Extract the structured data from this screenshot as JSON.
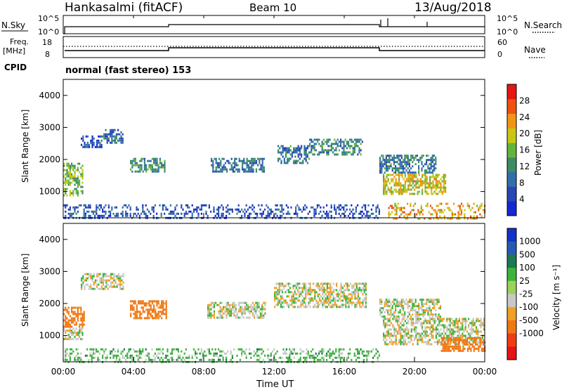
{
  "header": {
    "station": "Hankasalmi (fitACF)",
    "beam": "Beam 10",
    "date": "13/Aug/2018",
    "program": "normal (fast stereo) 153"
  },
  "panels": {
    "nsky": {
      "left_label": "N.Sky",
      "right_label": "N.Search",
      "left_ticks": [
        "10^5",
        "10^0"
      ],
      "right_ticks": [
        "10^5",
        "10^0"
      ]
    },
    "freq": {
      "left_label_1": "Freq.",
      "left_label_2": "[MHz]",
      "right_label": "Nave",
      "left_ticks": [
        "18",
        "8"
      ],
      "right_ticks": [
        "60",
        "0"
      ]
    },
    "cpid_label": "CPID"
  },
  "colors": {
    "power_scale": [
      "#1428d2",
      "#2846b4",
      "#326eaa",
      "#3c8c64",
      "#64b43c",
      "#c8c814",
      "#f09614",
      "#f05014",
      "#e61414"
    ],
    "velocity_scale": [
      "#1432c8",
      "#285ab4",
      "#1e7850",
      "#3cb43c",
      "#9bd25a",
      "#c8c8c8",
      "#f0a028",
      "#f07814",
      "#f03c14",
      "#e61414"
    ]
  },
  "chart_data": [
    {
      "type": "heatmap",
      "name_label": "Power",
      "ylabel": "Slant Range [km]",
      "xlabel": "",
      "colorbar_label": "Power [dB]",
      "yticks": [
        "1000",
        "2000",
        "3000",
        "4000"
      ],
      "ylim": [
        180,
        4500
      ],
      "colorbar_ticks": [
        "4",
        "8",
        "12",
        "16",
        "20",
        "24",
        "28"
      ],
      "colorbar_range": [
        0,
        32
      ],
      "echo_regions": [
        {
          "t0": 0.0,
          "t1": 1.1,
          "r0": 900,
          "r1": 1900,
          "power": 16
        },
        {
          "t0": 1.0,
          "t1": 2.2,
          "r0": 2400,
          "r1": 2750,
          "power": 6
        },
        {
          "t0": 2.2,
          "t1": 3.4,
          "r0": 2550,
          "r1": 2950,
          "power": 8
        },
        {
          "t0": 3.8,
          "t1": 5.8,
          "r0": 1600,
          "r1": 2050,
          "power": 12
        },
        {
          "t0": 8.4,
          "t1": 11.4,
          "r0": 1600,
          "r1": 2050,
          "power": 9
        },
        {
          "t0": 12.2,
          "t1": 14.0,
          "r0": 1900,
          "r1": 2450,
          "power": 10
        },
        {
          "t0": 14.0,
          "t1": 17.0,
          "r0": 2150,
          "r1": 2650,
          "power": 11
        },
        {
          "t0": 18.0,
          "t1": 21.2,
          "r0": 1600,
          "r1": 2150,
          "power": 10
        },
        {
          "t0": 18.2,
          "t1": 21.8,
          "r0": 950,
          "r1": 1550,
          "power": 20
        },
        {
          "t0": 18.5,
          "t1": 24.0,
          "r0": 180,
          "r1": 650,
          "power": 22
        },
        {
          "t0": 0.0,
          "t1": 18.0,
          "r0": 180,
          "r1": 600,
          "power": 6
        }
      ]
    },
    {
      "type": "heatmap",
      "name_label": "Velocity",
      "ylabel": "Slant Range [km]",
      "xlabel": "Time UT",
      "colorbar_label": "Velocity [m s⁻¹]",
      "yticks": [
        "1000",
        "2000",
        "3000",
        "4000"
      ],
      "ylim": [
        180,
        4500
      ],
      "colorbar_ticks": [
        "1000",
        "500",
        "100",
        "25",
        "-25",
        "-100",
        "-500",
        "-1000"
      ],
      "xticks": [
        "00:00",
        "04:00",
        "08:00",
        "12:00",
        "16:00",
        "20:00",
        "00:00"
      ],
      "xlim_hours": [
        0,
        24
      ],
      "echo_regions": [
        {
          "t0": 0.0,
          "t1": 1.2,
          "r0": 1250,
          "r1": 1900,
          "velocity": -150
        },
        {
          "t0": 0.0,
          "t1": 1.1,
          "r0": 900,
          "r1": 1250,
          "velocity": 0
        },
        {
          "t0": 3.8,
          "t1": 5.9,
          "r0": 1550,
          "r1": 2100,
          "velocity": -150
        },
        {
          "t0": 1.0,
          "t1": 3.4,
          "r0": 2450,
          "r1": 2950,
          "velocity": 0
        },
        {
          "t0": 8.2,
          "t1": 11.5,
          "r0": 1550,
          "r1": 2050,
          "velocity": 0
        },
        {
          "t0": 12.0,
          "t1": 17.2,
          "r0": 1900,
          "r1": 2650,
          "velocity": 0
        },
        {
          "t0": 18.0,
          "t1": 21.5,
          "r0": 1600,
          "r1": 2150,
          "velocity": 0
        },
        {
          "t0": 18.2,
          "t1": 24.0,
          "r0": 700,
          "r1": 1550,
          "velocity": 0
        },
        {
          "t0": 21.5,
          "t1": 24.0,
          "r0": 550,
          "r1": 950,
          "velocity": -200
        },
        {
          "t0": 0.0,
          "t1": 18.0,
          "r0": 180,
          "r1": 600,
          "velocity": 50
        }
      ]
    }
  ]
}
